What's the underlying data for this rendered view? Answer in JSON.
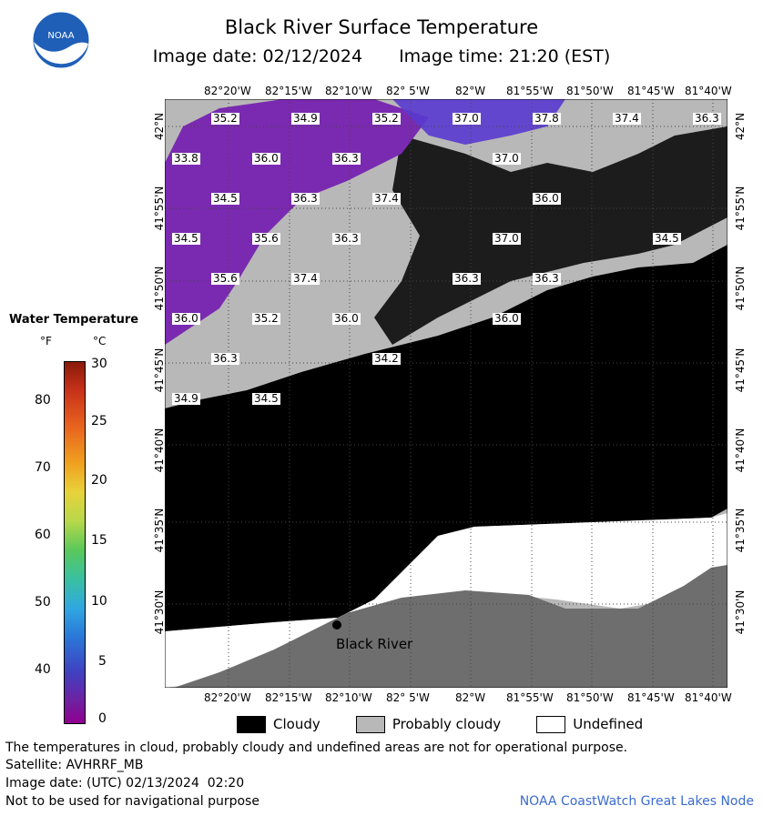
{
  "header": {
    "title": "Black River Surface Temperature",
    "image_date_label": "Image date: 02/12/2024",
    "image_time_label": "Image time: 21:20 (EST)",
    "logo_text": "NOAA"
  },
  "legend": {
    "title": "Water Temperature",
    "unit_f": "°F",
    "unit_c": "°C",
    "f_ticks": [
      "80",
      "70",
      "60",
      "50",
      "40"
    ],
    "c_ticks": [
      "30",
      "25",
      "20",
      "15",
      "10",
      "5",
      "0"
    ]
  },
  "map": {
    "lon_labels": [
      "82°20'W",
      "82°15'W",
      "82°10'W",
      "82° 5'W",
      "82°W",
      "81°55'W",
      "81°50'W",
      "81°45'W",
      "81°40'W"
    ],
    "lat_labels": [
      "42°N",
      "41°55'N",
      "41°50'N",
      "41°45'N",
      "41°40'N",
      "41°35'N",
      "41°30'N"
    ],
    "place_name": "Black River",
    "temperature_labels": [
      "35.2",
      "34.9",
      "35.2",
      "37.0",
      "37.8",
      "37.4",
      "36.3",
      "33.8",
      "36.0",
      "36.3",
      "37.0",
      "34.5",
      "36.3",
      "37.4",
      "36.0",
      "34.5",
      "35.6",
      "36.3",
      "37.0",
      "34.5",
      "35.6",
      "37.4",
      "36.3",
      "36.3",
      "36.0",
      "35.2",
      "36.0",
      "36.0",
      "36.3",
      "34.2",
      "34.9",
      "34.5"
    ]
  },
  "key": {
    "cloudy": "Cloudy",
    "probably_cloudy": "Probably cloudy",
    "undefined": "Undefined"
  },
  "footer": {
    "disclaimer": "The temperatures in cloud, probably cloudy and undefined areas are not for operational purpose.",
    "satellite": "Satellite: AVHRRF_MB",
    "utc_date": "Image date: (UTC) 02/13/2024  02:20",
    "nav_warning": "Not to be used for navigational purpose",
    "node": "NOAA CoastWatch Great Lakes Node"
  }
}
